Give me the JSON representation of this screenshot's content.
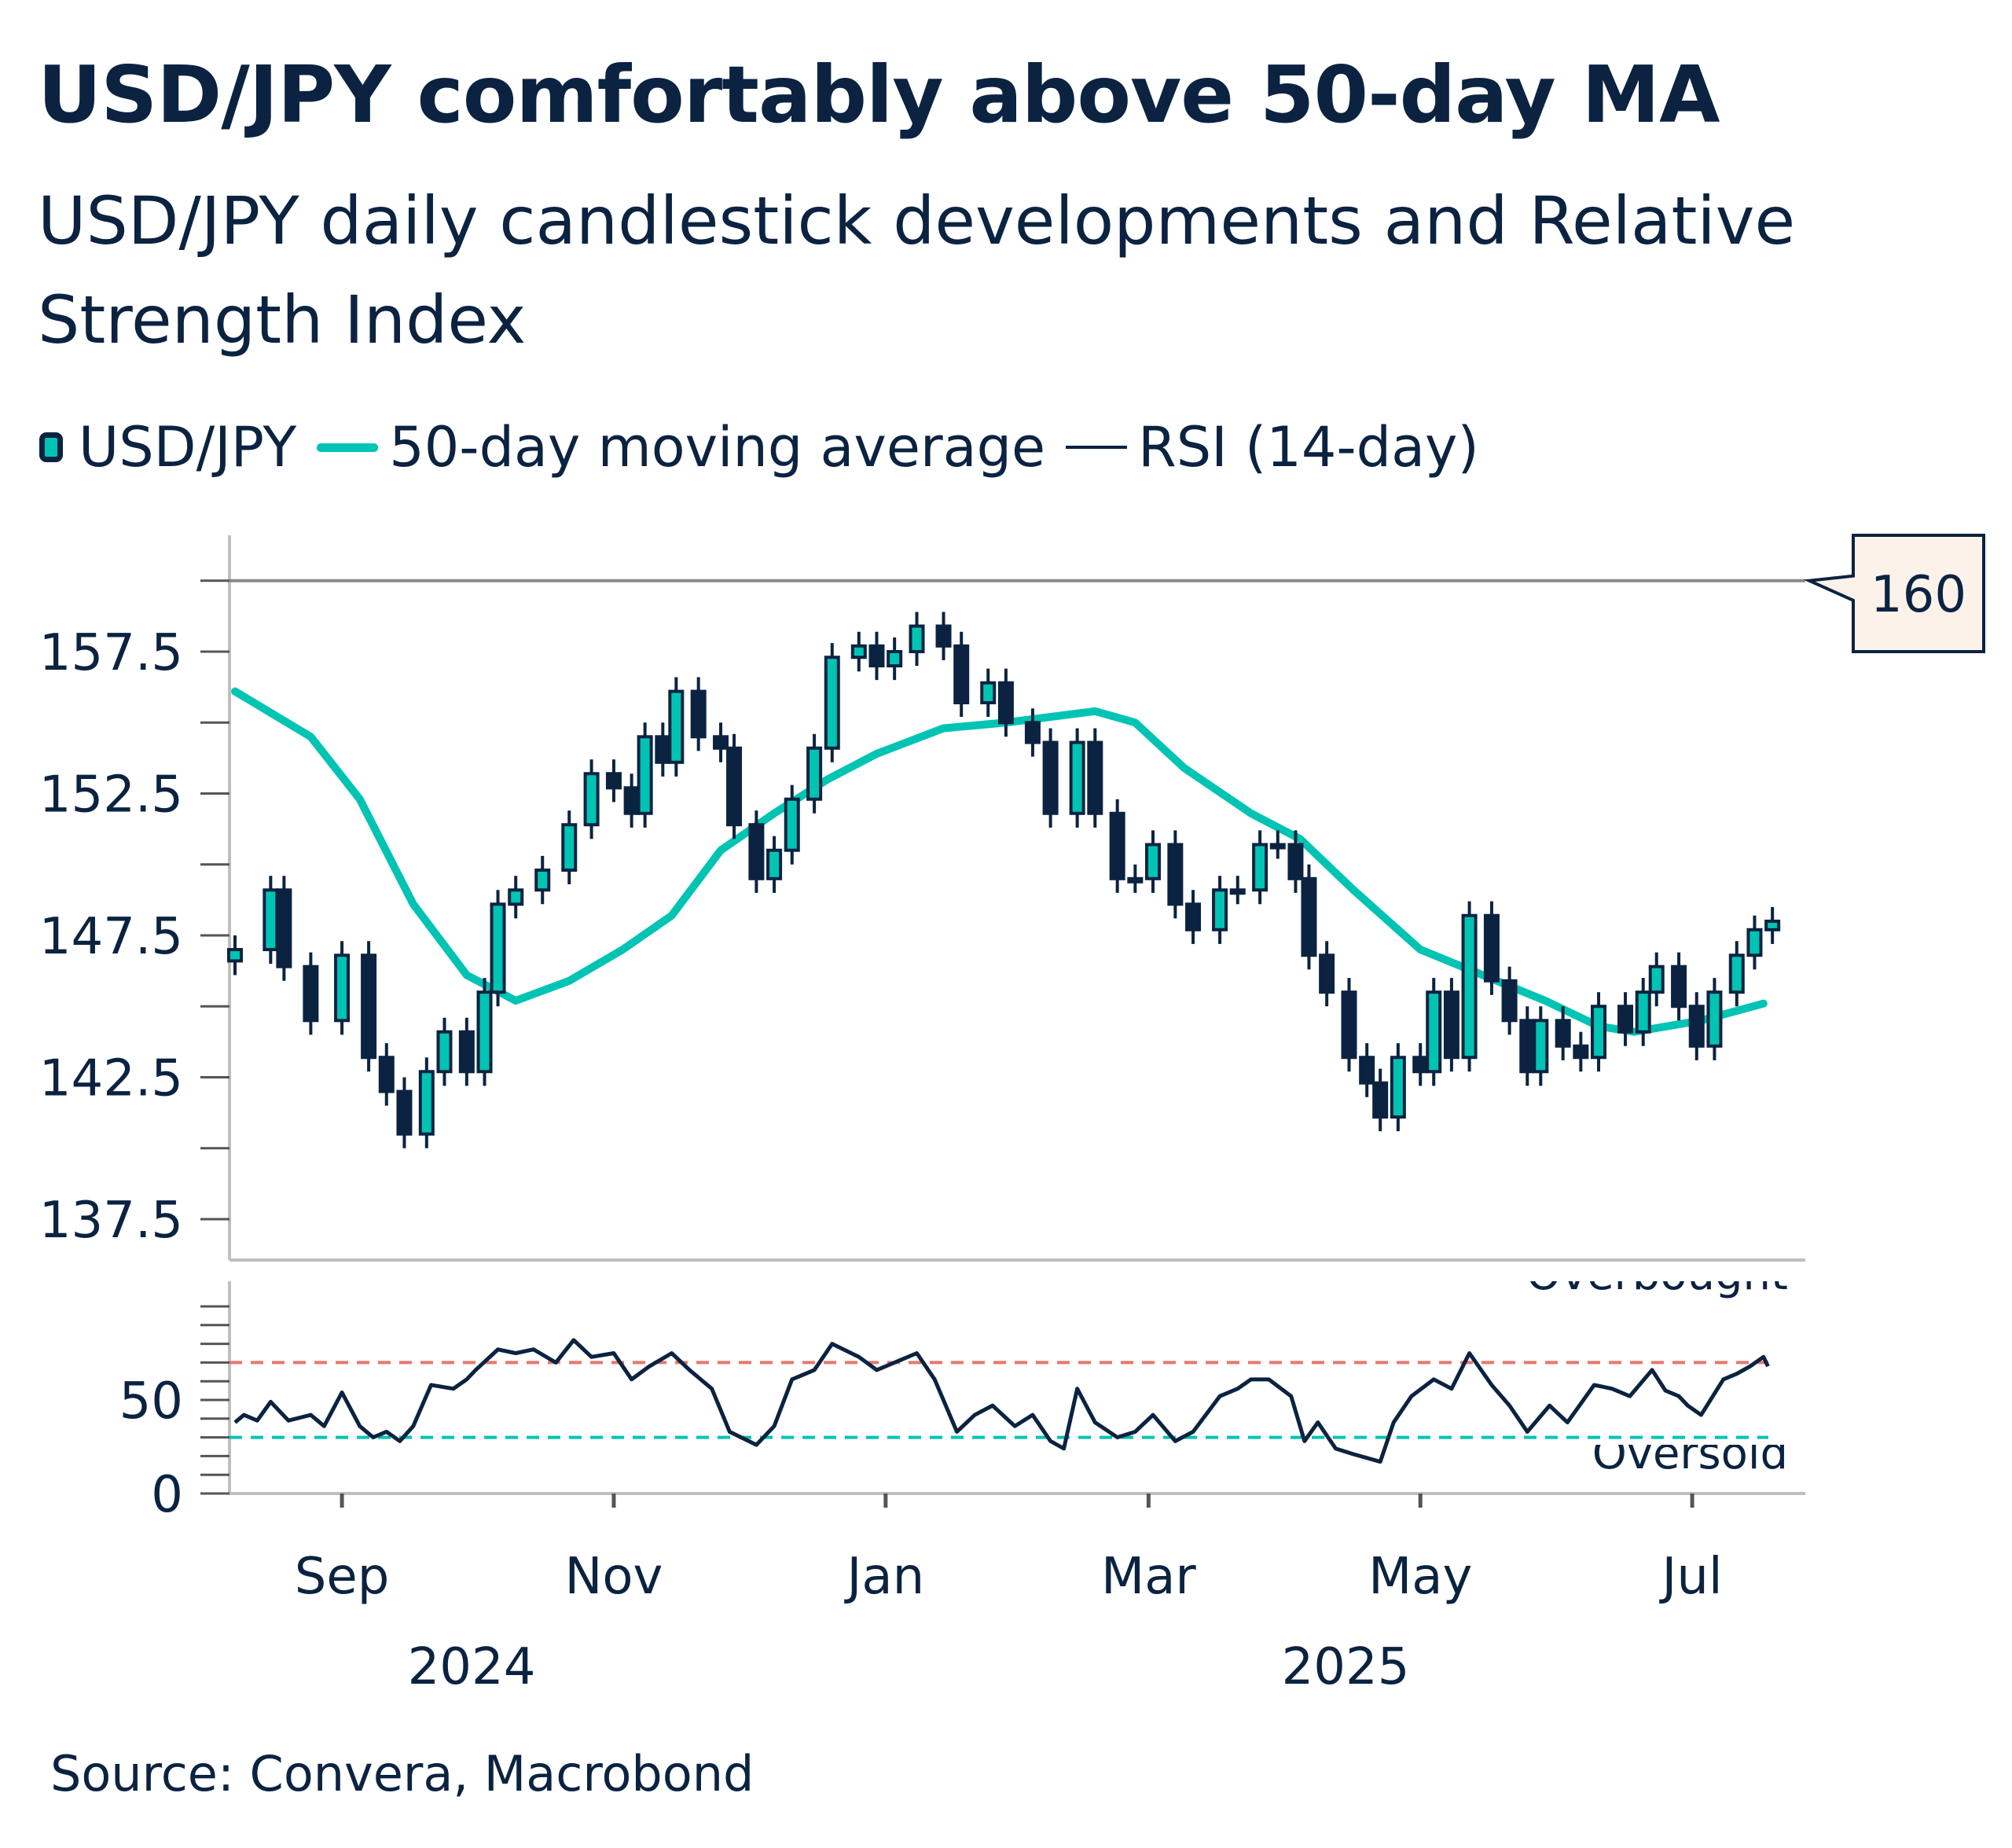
{
  "title": "USD/JPY comfortably above 50-day MA",
  "subtitle": "USD/JPY daily candlestick developments and Relative Strength Index",
  "legend": [
    {
      "label": "USD/JPY",
      "icon": "candlestick-swatch"
    },
    {
      "label": "50-day moving average",
      "icon": "line-swatch"
    },
    {
      "label": "RSI (14-day)",
      "icon": "line-swatch"
    }
  ],
  "source": "Source: Convera, Macrobond",
  "colors": {
    "text": "#0b2341",
    "candle_up": "#00c4b3",
    "candle_border": "#0b2341",
    "ma": "#00c4b3",
    "rsi": "#0b2341",
    "overbought": "#e8776c",
    "oversold": "#00c4b3",
    "reference_line": "#8a8a8a",
    "callout_fill": "#fcf2ea"
  },
  "chart_data": [
    {
      "type": "candlestick",
      "panel": "price",
      "ylim": [
        136,
        161
      ],
      "y_ticks": [
        "137.5",
        "142.5",
        "147.5",
        "152.5",
        "157.5"
      ],
      "grid": false,
      "reference_line": {
        "value": 160,
        "label": "160"
      },
      "series_price": {
        "name": "USD/JPY",
        "dates": [
          "2024-08-08",
          "2024-08-16",
          "2024-08-19",
          "2024-08-25",
          "2024-09-01",
          "2024-09-07",
          "2024-09-11",
          "2024-09-15",
          "2024-09-20",
          "2024-09-24",
          "2024-09-29",
          "2024-10-03",
          "2024-10-06",
          "2024-10-10",
          "2024-10-16",
          "2024-10-22",
          "2024-10-27",
          "2024-11-01",
          "2024-11-05",
          "2024-11-08",
          "2024-11-12",
          "2024-11-15",
          "2024-11-20",
          "2024-11-25",
          "2024-11-28",
          "2024-12-03",
          "2024-12-07",
          "2024-12-11",
          "2024-12-16",
          "2024-12-20",
          "2024-12-26",
          "2024-12-30",
          "2025-01-03",
          "2025-01-08",
          "2025-01-14",
          "2025-01-18",
          "2025-01-24",
          "2025-01-28",
          "2025-02-03",
          "2025-02-07",
          "2025-02-13",
          "2025-02-17",
          "2025-02-22",
          "2025-02-26",
          "2025-03-02",
          "2025-03-07",
          "2025-03-11",
          "2025-03-17",
          "2025-03-21",
          "2025-03-26",
          "2025-03-30",
          "2025-04-03",
          "2025-04-06",
          "2025-04-10",
          "2025-04-15",
          "2025-04-19",
          "2025-04-22",
          "2025-04-26",
          "2025-05-01",
          "2025-05-04",
          "2025-05-08",
          "2025-05-12",
          "2025-05-17",
          "2025-05-21",
          "2025-05-25",
          "2025-05-28",
          "2025-06-02",
          "2025-06-06",
          "2025-06-10",
          "2025-06-16",
          "2025-06-20",
          "2025-06-23",
          "2025-06-28",
          "2025-07-02",
          "2025-07-06",
          "2025-07-11",
          "2025-07-15",
          "2025-07-19"
        ],
        "close": [
          147.0,
          149.1,
          146.4,
          144.5,
          146.8,
          143.2,
          142.0,
          140.5,
          142.7,
          144.1,
          142.7,
          145.5,
          148.6,
          149.1,
          149.8,
          151.4,
          153.2,
          152.7,
          151.8,
          154.5,
          153.6,
          156.1,
          154.5,
          154.1,
          151.4,
          149.5,
          150.5,
          152.3,
          154.1,
          157.3,
          157.7,
          157.0,
          157.5,
          158.4,
          157.7,
          155.7,
          156.4,
          155.0,
          154.3,
          151.8,
          154.3,
          151.8,
          149.5,
          149.5,
          150.7,
          148.6,
          147.7,
          149.1,
          149.1,
          150.7,
          150.7,
          149.5,
          146.8,
          145.5,
          143.2,
          142.3,
          141.1,
          143.2,
          142.7,
          145.5,
          143.2,
          148.2,
          145.9,
          144.5,
          142.7,
          144.5,
          143.6,
          143.2,
          145.0,
          144.1,
          145.5,
          146.4,
          145.0,
          143.6,
          145.5,
          146.8,
          147.7,
          148.0
        ]
      },
      "series_ma": {
        "name": "50-day moving average",
        "dates": [
          "2024-08-08",
          "2024-08-25",
          "2024-09-05",
          "2024-09-17",
          "2024-09-29",
          "2024-10-10",
          "2024-10-22",
          "2024-11-03",
          "2024-11-14",
          "2024-11-25",
          "2024-12-07",
          "2024-12-19",
          "2024-12-30",
          "2025-01-14",
          "2025-01-28",
          "2025-02-17",
          "2025-02-26",
          "2025-03-09",
          "2025-03-24",
          "2025-04-04",
          "2025-04-16",
          "2025-05-01",
          "2025-05-15",
          "2025-05-29",
          "2025-06-10",
          "2025-06-18",
          "2025-07-03",
          "2025-07-17"
        ],
        "values": [
          156.1,
          154.5,
          152.3,
          148.6,
          146.1,
          145.2,
          145.9,
          147.0,
          148.2,
          150.5,
          151.8,
          153.0,
          153.9,
          154.8,
          155.0,
          155.4,
          155.0,
          153.4,
          151.8,
          150.9,
          149.1,
          147.0,
          146.1,
          145.2,
          144.3,
          144.1,
          144.5,
          145.1
        ]
      }
    },
    {
      "type": "line",
      "panel": "rsi",
      "ylim": [
        0,
        100
      ],
      "y_ticks": [
        "0",
        "50"
      ],
      "thresholds": [
        {
          "value": 70,
          "label": "Overbought"
        },
        {
          "value": 30,
          "label": "Oversold"
        }
      ],
      "x_tick_labels": [
        "Sep",
        "Nov",
        "Jan",
        "Mar",
        "May",
        "Jul"
      ],
      "x_tick_dates": [
        "2024-09-01",
        "2024-11-01",
        "2025-01-01",
        "2025-03-01",
        "2025-05-01",
        "2025-07-01"
      ],
      "year_labels": [
        "2024",
        "2025"
      ],
      "series": [
        {
          "name": "RSI (14-day)",
          "dates": [
            "2024-08-08",
            "2024-08-10",
            "2024-08-13",
            "2024-08-16",
            "2024-08-20",
            "2024-08-25",
            "2024-08-28",
            "2024-09-01",
            "2024-09-05",
            "2024-09-08",
            "2024-09-11",
            "2024-09-14",
            "2024-09-17",
            "2024-09-21",
            "2024-09-26",
            "2024-09-29",
            "2024-10-01",
            "2024-10-06",
            "2024-10-10",
            "2024-10-14",
            "2024-10-19",
            "2024-10-23",
            "2024-10-27",
            "2024-11-01",
            "2024-11-05",
            "2024-11-09",
            "2024-11-14",
            "2024-11-18",
            "2024-11-23",
            "2024-11-27",
            "2024-12-03",
            "2024-12-07",
            "2024-12-11",
            "2024-12-16",
            "2024-12-20",
            "2024-12-26",
            "2024-12-30",
            "2025-01-03",
            "2025-01-08",
            "2025-01-12",
            "2025-01-17",
            "2025-01-21",
            "2025-01-25",
            "2025-01-30",
            "2025-02-03",
            "2025-02-07",
            "2025-02-10",
            "2025-02-13",
            "2025-02-17",
            "2025-02-22",
            "2025-02-26",
            "2025-03-02",
            "2025-03-07",
            "2025-03-11",
            "2025-03-17",
            "2025-03-21",
            "2025-03-24",
            "2025-03-28",
            "2025-04-02",
            "2025-04-05",
            "2025-04-08",
            "2025-04-12",
            "2025-04-16",
            "2025-04-22",
            "2025-04-25",
            "2025-04-29",
            "2025-05-04",
            "2025-05-08",
            "2025-05-12",
            "2025-05-17",
            "2025-05-21",
            "2025-05-25",
            "2025-05-30",
            "2025-06-03",
            "2025-06-09",
            "2025-06-13",
            "2025-06-17",
            "2025-06-22",
            "2025-06-25",
            "2025-06-28",
            "2025-06-30",
            "2025-07-03",
            "2025-07-08",
            "2025-07-11",
            "2025-07-14",
            "2025-07-17",
            "2025-07-18"
          ],
          "values": [
            38,
            42,
            39,
            49,
            39,
            42,
            36,
            54,
            36,
            30,
            33,
            28,
            36,
            58,
            56,
            61,
            66,
            77,
            75,
            77,
            70,
            82,
            73,
            75,
            61,
            68,
            75,
            66,
            56,
            33,
            26,
            36,
            61,
            66,
            80,
            73,
            66,
            70,
            75,
            61,
            33,
            42,
            47,
            36,
            42,
            28,
            24,
            56,
            38,
            30,
            33,
            42,
            28,
            33,
            52,
            56,
            61,
            61,
            52,
            28,
            38,
            24,
            21,
            17,
            38,
            52,
            61,
            56,
            75,
            58,
            47,
            33,
            47,
            38,
            58,
            56,
            52,
            66,
            55,
            52,
            47,
            42,
            61,
            64,
            68,
            73,
            68
          ]
        }
      ]
    }
  ]
}
